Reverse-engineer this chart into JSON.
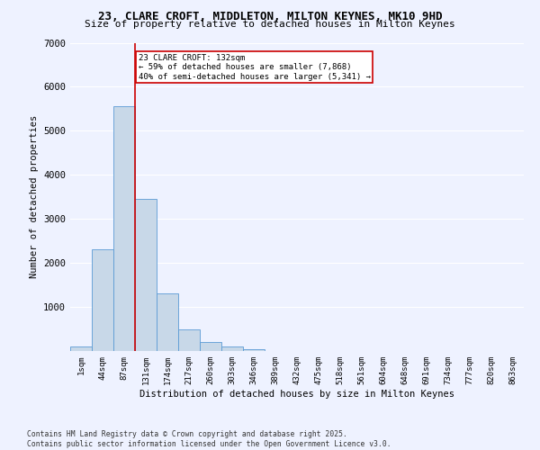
{
  "title_line1": "23, CLARE CROFT, MIDDLETON, MILTON KEYNES, MK10 9HD",
  "title_line2": "Size of property relative to detached houses in Milton Keynes",
  "xlabel": "Distribution of detached houses by size in Milton Keynes",
  "ylabel": "Number of detached properties",
  "categories": [
    "1sqm",
    "44sqm",
    "87sqm",
    "131sqm",
    "174sqm",
    "217sqm",
    "260sqm",
    "303sqm",
    "346sqm",
    "389sqm",
    "432sqm",
    "475sqm",
    "518sqm",
    "561sqm",
    "604sqm",
    "648sqm",
    "691sqm",
    "734sqm",
    "777sqm",
    "820sqm",
    "863sqm"
  ],
  "values": [
    100,
    2300,
    5550,
    3450,
    1310,
    490,
    200,
    100,
    50,
    0,
    0,
    0,
    0,
    0,
    0,
    0,
    0,
    0,
    0,
    0,
    0
  ],
  "bar_color": "#c8d8e8",
  "bar_edge_color": "#5b9bd5",
  "vline_x_index": 2.5,
  "vline_color": "#cc0000",
  "annotation_text": "23 CLARE CROFT: 132sqm\n← 59% of detached houses are smaller (7,868)\n40% of semi-detached houses are larger (5,341) →",
  "annotation_box_color": "#ffffff",
  "annotation_box_edge_color": "#cc0000",
  "ylim": [
    0,
    7000
  ],
  "yticks": [
    0,
    1000,
    2000,
    3000,
    4000,
    5000,
    6000,
    7000
  ],
  "background_color": "#eef2ff",
  "grid_color": "#ffffff",
  "footer_line1": "Contains HM Land Registry data © Crown copyright and database right 2025.",
  "footer_line2": "Contains public sector information licensed under the Open Government Licence v3.0."
}
